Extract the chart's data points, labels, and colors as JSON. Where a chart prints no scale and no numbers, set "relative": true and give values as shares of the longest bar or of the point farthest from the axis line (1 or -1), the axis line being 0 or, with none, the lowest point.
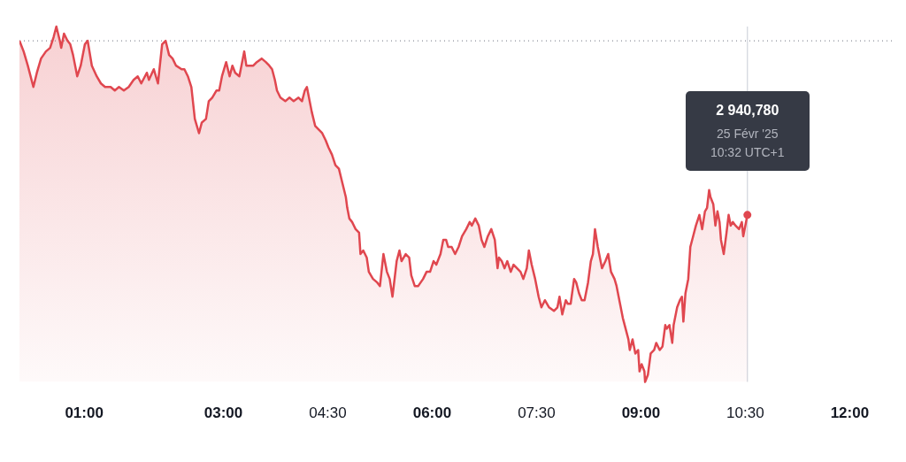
{
  "chart_data": {
    "type": "area",
    "relative": true,
    "x": [
      0.07,
      0.13,
      0.19,
      0.27,
      0.32,
      0.38,
      0.45,
      0.51,
      0.56,
      0.6,
      0.65,
      0.67,
      0.71,
      0.76,
      0.8,
      0.84,
      0.9,
      0.95,
      1.01,
      1.05,
      1.11,
      1.18,
      1.24,
      1.3,
      1.38,
      1.44,
      1.5,
      1.57,
      1.64,
      1.71,
      1.77,
      1.82,
      1.9,
      1.93,
      2.0,
      2.06,
      2.12,
      2.17,
      2.22,
      2.27,
      2.32,
      2.4,
      2.44,
      2.49,
      2.54,
      2.59,
      2.65,
      2.69,
      2.75,
      2.79,
      2.84,
      2.9,
      2.94,
      2.98,
      3.04,
      3.09,
      3.13,
      3.17,
      3.23,
      3.3,
      3.33,
      3.38,
      3.43,
      3.48,
      3.55,
      3.61,
      3.66,
      3.7,
      3.74,
      3.77,
      3.82,
      3.89,
      3.95,
      4.01,
      4.08,
      4.13,
      4.17,
      4.2,
      4.27,
      4.32,
      4.37,
      4.42,
      4.47,
      4.51,
      4.56,
      4.61,
      4.66,
      4.71,
      4.76,
      4.78,
      4.81,
      4.85,
      4.9,
      4.95,
      4.97,
      5.01,
      5.06,
      5.09,
      5.15,
      5.21,
      5.25,
      5.3,
      5.35,
      5.39,
      5.43,
      5.49,
      5.53,
      5.56,
      5.62,
      5.67,
      5.7,
      5.75,
      5.8,
      5.87,
      5.92,
      5.97,
      6.02,
      6.06,
      6.12,
      6.16,
      6.2,
      6.23,
      6.28,
      6.33,
      6.38,
      6.43,
      6.49,
      6.54,
      6.57,
      6.62,
      6.67,
      6.71,
      6.75,
      6.8,
      6.85,
      6.9,
      6.94,
      6.96,
      7.0,
      7.04,
      7.08,
      7.13,
      7.17,
      7.22,
      7.27,
      7.31,
      7.36,
      7.39,
      7.43,
      7.48,
      7.53,
      7.57,
      7.62,
      7.68,
      7.75,
      7.8,
      7.83,
      7.87,
      7.92,
      7.95,
      7.99,
      8.04,
      8.07,
      8.11,
      8.15,
      8.19,
      8.24,
      8.28,
      8.31,
      8.34,
      8.38,
      8.4,
      8.44,
      8.49,
      8.53,
      8.57,
      8.62,
      8.65,
      8.7,
      8.74,
      8.78,
      8.82,
      8.84,
      8.88,
      8.92,
      8.96,
      8.98,
      9.01,
      9.05,
      9.06,
      9.1,
      9.14,
      9.19,
      9.22,
      9.27,
      9.31,
      9.35,
      9.37,
      9.41,
      9.45,
      9.47,
      9.52,
      9.56,
      9.59,
      9.61,
      9.64,
      9.68,
      9.71,
      9.75,
      9.79,
      9.84,
      9.88,
      9.92,
      9.95,
      9.98,
      10.0,
      10.04,
      10.07,
      10.1,
      10.13,
      10.15,
      10.19,
      10.23,
      10.26,
      10.29,
      10.32,
      10.36,
      10.41,
      10.45,
      10.47,
      10.5,
      10.53
    ],
    "series": [
      {
        "color": "#e0474f",
        "values": [
          0.96,
          0.93,
          0.89,
          0.83,
          0.87,
          0.91,
          0.93,
          0.94,
          0.97,
          1.0,
          0.96,
          0.94,
          0.98,
          0.96,
          0.95,
          0.92,
          0.86,
          0.89,
          0.95,
          0.96,
          0.89,
          0.86,
          0.84,
          0.83,
          0.83,
          0.82,
          0.83,
          0.82,
          0.83,
          0.85,
          0.86,
          0.84,
          0.87,
          0.85,
          0.88,
          0.84,
          0.95,
          0.96,
          0.92,
          0.91,
          0.89,
          0.88,
          0.88,
          0.86,
          0.83,
          0.74,
          0.7,
          0.73,
          0.74,
          0.79,
          0.8,
          0.82,
          0.82,
          0.86,
          0.9,
          0.86,
          0.89,
          0.87,
          0.86,
          0.93,
          0.89,
          0.89,
          0.89,
          0.9,
          0.91,
          0.9,
          0.89,
          0.88,
          0.85,
          0.82,
          0.8,
          0.79,
          0.8,
          0.79,
          0.8,
          0.79,
          0.82,
          0.83,
          0.76,
          0.72,
          0.71,
          0.7,
          0.68,
          0.66,
          0.64,
          0.61,
          0.6,
          0.56,
          0.52,
          0.49,
          0.46,
          0.45,
          0.43,
          0.42,
          0.36,
          0.37,
          0.35,
          0.31,
          0.29,
          0.28,
          0.27,
          0.36,
          0.31,
          0.29,
          0.24,
          0.34,
          0.37,
          0.34,
          0.36,
          0.35,
          0.3,
          0.27,
          0.27,
          0.29,
          0.31,
          0.31,
          0.34,
          0.33,
          0.36,
          0.4,
          0.4,
          0.38,
          0.38,
          0.36,
          0.38,
          0.41,
          0.43,
          0.45,
          0.44,
          0.46,
          0.44,
          0.4,
          0.38,
          0.41,
          0.43,
          0.4,
          0.32,
          0.35,
          0.34,
          0.32,
          0.34,
          0.31,
          0.33,
          0.32,
          0.31,
          0.29,
          0.32,
          0.37,
          0.33,
          0.29,
          0.24,
          0.21,
          0.23,
          0.21,
          0.2,
          0.21,
          0.24,
          0.19,
          0.23,
          0.22,
          0.22,
          0.29,
          0.28,
          0.25,
          0.23,
          0.23,
          0.28,
          0.34,
          0.36,
          0.43,
          0.38,
          0.36,
          0.32,
          0.34,
          0.36,
          0.31,
          0.29,
          0.27,
          0.22,
          0.18,
          0.15,
          0.12,
          0.09,
          0.12,
          0.08,
          0.09,
          0.03,
          0.05,
          0.03,
          0,
          0.02,
          0.08,
          0.09,
          0.11,
          0.09,
          0.1,
          0.16,
          0.15,
          0.16,
          0.11,
          0.16,
          0.21,
          0.23,
          0.24,
          0.17,
          0.25,
          0.29,
          0.38,
          0.41,
          0.44,
          0.47,
          0.43,
          0.48,
          0.49,
          0.54,
          0.52,
          0.5,
          0.44,
          0.48,
          0.45,
          0.4,
          0.36,
          0.42,
          0.47,
          0.44,
          0.45,
          0.44,
          0.43,
          0.45,
          0.41,
          0.44,
          0.47
        ]
      }
    ],
    "xlim": [
      0.07,
      12.65
    ],
    "xticks": [
      {
        "value": 1,
        "label": "01:00"
      },
      {
        "value": 3,
        "label": "03:00"
      },
      {
        "value": 4.5,
        "label": "04:30"
      },
      {
        "value": 6,
        "label": "06:00"
      },
      {
        "value": 7.5,
        "label": "07:30"
      },
      {
        "value": 9,
        "label": "09:00"
      },
      {
        "value": 10.5,
        "label": "10:30"
      },
      {
        "value": 12,
        "label": "12:00"
      }
    ],
    "ref_lines": [
      {
        "axis": "y",
        "value": 0.96,
        "color": "#8a8e99",
        "line_style": "dotted"
      },
      {
        "axis": "x",
        "value": 10.53,
        "color": "#d1d4dc",
        "line_style": "solid"
      }
    ],
    "annotations": [
      "2 940,780",
      "25 Févr '25",
      "10:32 UTC+1"
    ],
    "grid": false,
    "legend": false
  }
}
